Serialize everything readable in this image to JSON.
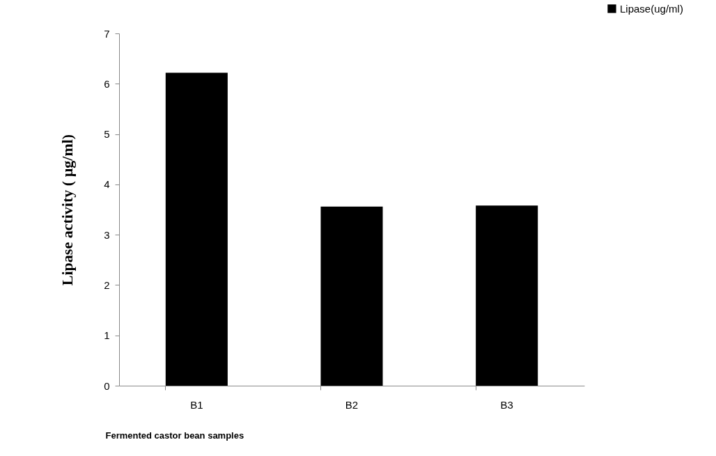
{
  "chart_data": {
    "type": "bar",
    "xlabel": "Fermented castor bean samples",
    "ylabel": "Lipase activity ( µg/ml)",
    "categories": [
      "B1",
      "B2",
      "B3"
    ],
    "series": [
      {
        "name": "Lipase(ug/ml)",
        "color": "#000000",
        "values": [
          6.22,
          3.56,
          3.58
        ]
      }
    ],
    "ylim": [
      0,
      7
    ],
    "yticks": [
      0,
      1,
      2,
      3,
      4,
      5,
      6,
      7
    ],
    "grid": false,
    "legend": "top right"
  }
}
